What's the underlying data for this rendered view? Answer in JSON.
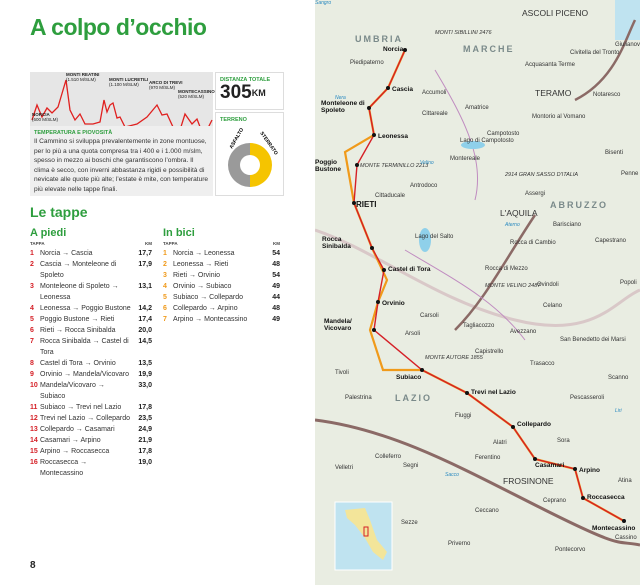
{
  "page": {
    "title": "A colpo d’occhio",
    "page_number": "8"
  },
  "profile": {
    "peaks": [
      {
        "name": "NORCIA",
        "alt": "(600 m/slm)"
      },
      {
        "name": "MONTI REATINI",
        "alt": "(1.510 m/slm)"
      },
      {
        "name": "MONTI LUCRETILI",
        "alt": "(1.100 m/slm)"
      },
      {
        "name": "ARCO DI TREVI",
        "alt": "(970 m/slm)"
      },
      {
        "name": "MONTECASSINO",
        "alt": "(520 m/slm)"
      }
    ]
  },
  "distance": {
    "label": "DISTANZA TOTALE",
    "value": "305",
    "unit": "KM"
  },
  "terrain": {
    "label": "TERRENO",
    "asphalt_label": "ASFALTO",
    "dirt_label": "STERRATO",
    "dirt_fraction": 0.5,
    "colors": {
      "asphalt": "#9a9a9a",
      "dirt": "#f5c400"
    }
  },
  "climate": {
    "heading": "TEMPERATURA E PIOVOSITÀ",
    "text": "Il Cammino si sviluppa prevalentemente in zone montuose, per lo più a una quota compresa tra i 400 e i 1.000 m/slm, spesso in mezzo ai boschi che garantiscono l’ombra. Il clima è secco, con inverni abbastanza rigidi e possibilità di nevicate alle quote più alte; l’estate è mite, con temperature più elevate nelle tappe finali."
  },
  "stages": {
    "heading": "Le tappe",
    "foot": {
      "title": "A piedi",
      "col_stage": "TAPPA",
      "col_km": "KM",
      "rows": [
        {
          "n": "1",
          "route": "Norcia → Cascia",
          "km": "17,7"
        },
        {
          "n": "2",
          "route": "Cascia → Monteleone di Spoleto",
          "km": "17,9"
        },
        {
          "n": "3",
          "route": "Monteleone di Spoleto → Leonessa",
          "km": "13,1"
        },
        {
          "n": "4",
          "route": "Leonessa → Poggio Bustone",
          "km": "14,2"
        },
        {
          "n": "5",
          "route": "Poggio Bustone → Rieti",
          "km": "17,4"
        },
        {
          "n": "6",
          "route": "Rieti → Rocca Sinibalda",
          "km": "20,0"
        },
        {
          "n": "7",
          "route": "Rocca Sinibalda → Castel di Tora",
          "km": "14,5"
        },
        {
          "n": "8",
          "route": "Castel di Tora → Orvinio",
          "km": "13,5"
        },
        {
          "n": "9",
          "route": "Orvinio → Mandela/Vicovaro",
          "km": "19,9"
        },
        {
          "n": "10",
          "route": "Mandela/Vicovaro → Subiaco",
          "km": "33,0"
        },
        {
          "n": "11",
          "route": "Subiaco → Trevi nel Lazio",
          "km": "17,8"
        },
        {
          "n": "12",
          "route": "Trevi nel Lazio → Collepardo",
          "km": "23,5"
        },
        {
          "n": "13",
          "route": "Collepardo → Casamari",
          "km": "24,9"
        },
        {
          "n": "14",
          "route": "Casamari → Arpino",
          "km": "21,9"
        },
        {
          "n": "15",
          "route": "Arpino → Roccasecca",
          "km": "17,8"
        },
        {
          "n": "16",
          "route": "Roccasecca → Montecassino",
          "km": "19,0"
        }
      ]
    },
    "bike": {
      "title": "In bici",
      "col_stage": "TAPPA",
      "col_km": "KM",
      "rows": [
        {
          "n": "1",
          "route": "Norcia → Leonessa",
          "km": "54"
        },
        {
          "n": "2",
          "route": "Leonessa → Rieti",
          "km": "48"
        },
        {
          "n": "3",
          "route": "Rieti → Orvinio",
          "km": "54"
        },
        {
          "n": "4",
          "route": "Orvinio → Subiaco",
          "km": "49"
        },
        {
          "n": "5",
          "route": "Subiaco → Collepardo",
          "km": "44"
        },
        {
          "n": "6",
          "route": "Collepardo → Arpino",
          "km": "48"
        },
        {
          "n": "7",
          "route": "Arpino → Montecassino",
          "km": "49"
        }
      ]
    }
  },
  "map": {
    "colors": {
      "foot_route": "#d52027",
      "bike_route": "#f09a1a"
    },
    "stops": [
      "Norcia",
      "Cascia",
      "Monteleone di Spoleto",
      "Leonessa",
      "Poggio Bustone",
      "RIETI",
      "Rocca Sinibalda",
      "Castel di Tora",
      "Orvinio",
      "Mandela/ Vicovaro",
      "Subiaco",
      "Trevi nel Lazio",
      "Collepardo",
      "Casamari",
      "Arpino",
      "Roccasecca",
      "Montecassino"
    ],
    "labels": [
      "ASCOLI PICENO",
      "UMBRIA",
      "MONTI SIBILLINI 2476",
      "MARCHE",
      "Piedipaterno",
      "Acquasanta Terme",
      "Civitella del Tronto",
      "Giulianova",
      "Accumoli",
      "TERAMO",
      "Notaresco",
      "Cittareale",
      "Amatrice",
      "Montorio al Vomano",
      "Campotosto",
      "Lago di Campotosto",
      "Montereale",
      "Bisenti",
      "MONTE TERMINILLO 2213",
      "2914 GRAN SASSO D'ITALIA",
      "Penne",
      "Antrodoco",
      "Cittaducale",
      "Assergi",
      "ABRUZZO",
      "L'AQUILA",
      "Barisciano",
      "Capestrano",
      "Lago del Salto",
      "Rocca di Cambio",
      "Rocca di Mezzo",
      "MONTE VELINO 2487",
      "Ovindoli",
      "Popoli",
      "Celano",
      "Carsoli",
      "Tagliacozzo",
      "Avezzano",
      "San Benedetto dei Marsi",
      "Arsoli",
      "Capistrello",
      "MONTE AUTORE 1855",
      "Trasacco",
      "Tivoli",
      "Scanno",
      "LAZIO",
      "Palestrina",
      "Pescasseroli",
      "Fiuggi",
      "Alatri",
      "Sora",
      "Ferentino",
      "Colleferro",
      "Velletri",
      "Segni",
      "FROSINONE",
      "Atina",
      "Ceccano",
      "Ceprano",
      "Sezze",
      "Priverno",
      "Pontecorvo",
      "Cassino",
      "Aterno",
      "Velino",
      "Nera",
      "Sacco",
      "Liri",
      "Sangro"
    ]
  }
}
